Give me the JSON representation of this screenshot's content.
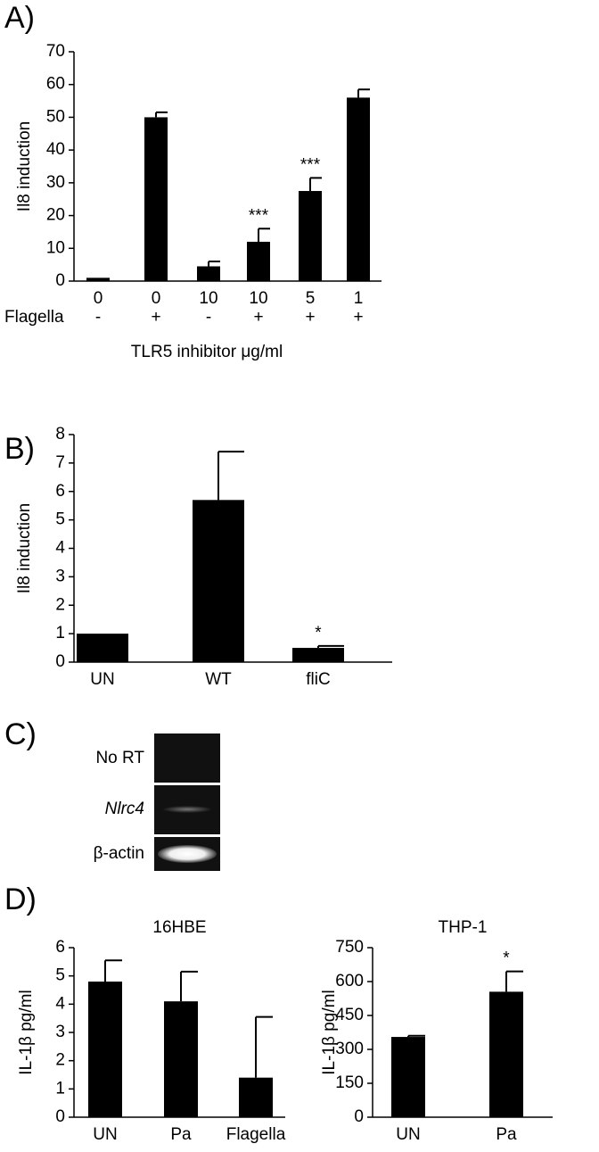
{
  "chart_data": [
    {
      "type": "bar",
      "panel": "A)",
      "ylabel": "Il8 induction",
      "xlabel": "TLR5 inhibitor μg/ml",
      "categories": [
        "0",
        "0",
        "10",
        "10",
        "5",
        "1"
      ],
      "row_label": "Flagella",
      "row_values": [
        "-",
        "+",
        "-",
        "+",
        "+",
        "+"
      ],
      "values": [
        1,
        50,
        4.5,
        12,
        27.5,
        56
      ],
      "errors": [
        0,
        1.5,
        1.5,
        4,
        4,
        2.5
      ],
      "significance": [
        null,
        null,
        null,
        "***",
        "***",
        null
      ],
      "color": "#000000",
      "ylim": [
        0,
        70
      ],
      "yticks": [
        0,
        10,
        20,
        30,
        40,
        50,
        60,
        70
      ]
    },
    {
      "type": "bar",
      "panel": "B)",
      "ylabel": "Il8 induction",
      "categories": [
        "UN",
        "WT",
        "fliC"
      ],
      "values": [
        1,
        5.7,
        0.5
      ],
      "errors": [
        0,
        1.7,
        0.07
      ],
      "significance": [
        null,
        null,
        "*"
      ],
      "color": "#000000",
      "ylim": [
        0,
        8
      ],
      "yticks": [
        0,
        1,
        2,
        3,
        4,
        5,
        6,
        7,
        8
      ]
    },
    {
      "type": "bar",
      "panel": "D)",
      "title": "16HBE",
      "ylabel": "IL-1β pg/ml",
      "categories": [
        "UN",
        "Pa",
        "Flagella"
      ],
      "values": [
        4.8,
        4.1,
        1.4
      ],
      "errors": [
        0.75,
        1.05,
        2.15
      ],
      "color": "#000000",
      "ylim": [
        0,
        6
      ],
      "yticks": [
        0,
        1,
        2,
        3,
        4,
        5,
        6
      ]
    },
    {
      "type": "bar",
      "title": "THP-1",
      "ylabel": "IL-1β pg/ml",
      "categories": [
        "UN",
        "Pa"
      ],
      "values": [
        355,
        555
      ],
      "errors": [
        5,
        90
      ],
      "significance": [
        null,
        "*"
      ],
      "color": "#000000",
      "ylim": [
        0,
        750
      ],
      "yticks": [
        0,
        150,
        300,
        450,
        600,
        750
      ]
    }
  ],
  "gel": {
    "panel": "C)",
    "lanes": [
      "No RT",
      "Nlrc4",
      "β-actin"
    ]
  }
}
